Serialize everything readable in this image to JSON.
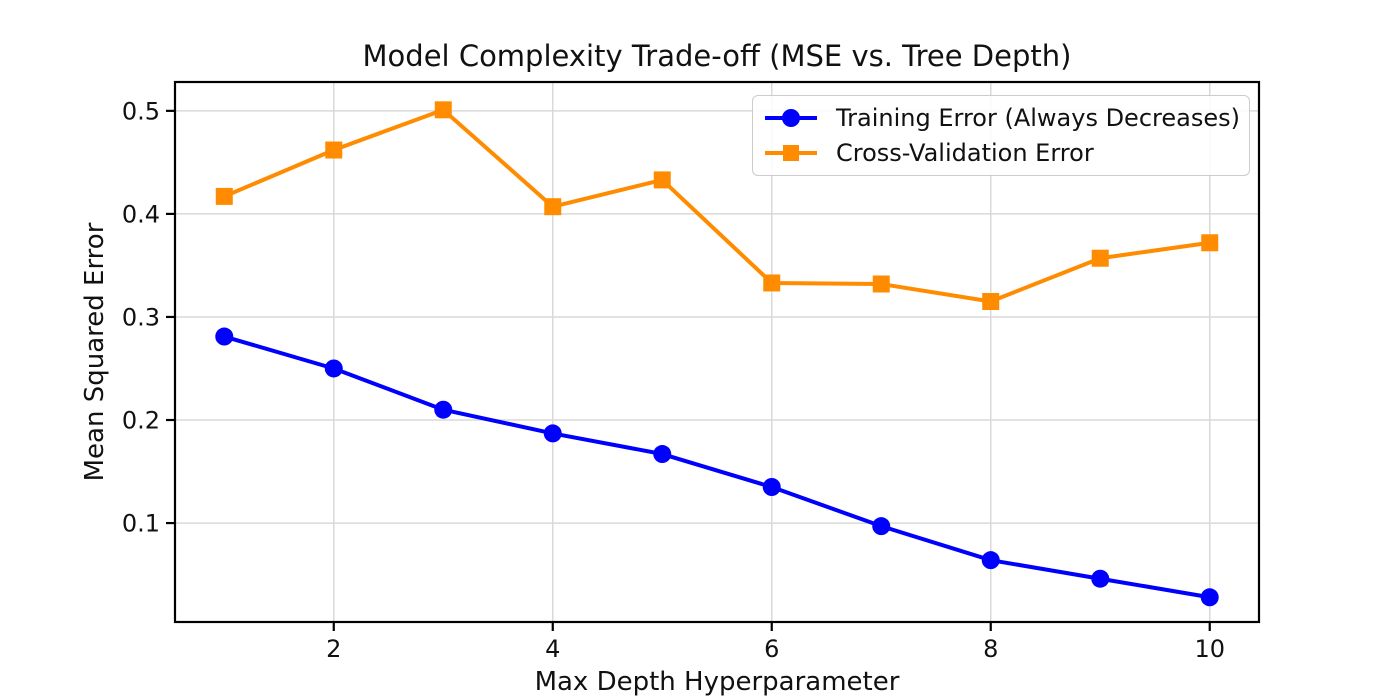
{
  "chart_data": {
    "type": "line",
    "title": "Model Complexity Trade-off (MSE vs. Tree Depth)",
    "xlabel": "Max Depth Hyperparameter",
    "ylabel": "Mean Squared Error",
    "x": [
      1,
      2,
      3,
      4,
      5,
      6,
      7,
      8,
      9,
      10
    ],
    "series": [
      {
        "name": "Training Error (Always Decreases)",
        "marker": "circle",
        "color": "#0000ff",
        "values": [
          0.281,
          0.25,
          0.21,
          0.187,
          0.167,
          0.135,
          0.097,
          0.064,
          0.046,
          0.028
        ]
      },
      {
        "name": "Cross-Validation Error",
        "marker": "square",
        "color": "#ff8c00",
        "values": [
          0.417,
          0.462,
          0.501,
          0.407,
          0.433,
          0.333,
          0.332,
          0.315,
          0.357,
          0.372
        ]
      }
    ],
    "xlim": [
      0.55,
      10.45
    ],
    "ylim": [
      0.004,
      0.528
    ],
    "xticks": [
      2,
      4,
      6,
      8,
      10
    ],
    "yticks": [
      0.1,
      0.2,
      0.3,
      0.4,
      0.5
    ],
    "grid": true,
    "legend_position": "upper right",
    "grid_color": "#d9d9d9",
    "spine_color": "#000000",
    "text_color": "#111111"
  }
}
